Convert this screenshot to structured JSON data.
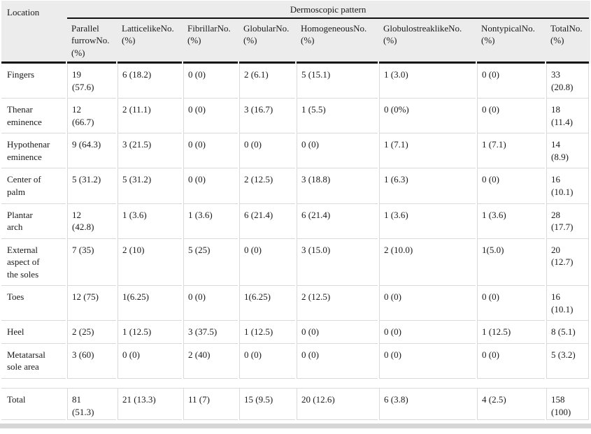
{
  "table": {
    "location_header": "Location",
    "group_header": "Dermoscopic pattern",
    "columns": [
      {
        "id": "parallel-furrow",
        "label": "Parallel\nfurrowNo.\n(%)"
      },
      {
        "id": "latticelike",
        "label": "LatticelikeNo.\n(%)"
      },
      {
        "id": "fibrillar",
        "label": "FibrillarNo.\n(%)"
      },
      {
        "id": "globular",
        "label": "GlobularNo.\n(%)"
      },
      {
        "id": "homogeneous",
        "label": "HomogeneousNo.\n(%)"
      },
      {
        "id": "globulostreaklike",
        "label": "GlobulostreaklikeNo.\n(%)"
      },
      {
        "id": "nontypical",
        "label": "NontypicalNo.\n(%)"
      },
      {
        "id": "total",
        "label": "TotalNo.\n(%)"
      }
    ],
    "rows": [
      {
        "location": "Fingers",
        "values": [
          "19\n(57.6)",
          "6 (18.2)",
          "0 (0)",
          "2 (6.1)",
          "5 (15.1)",
          "1 (3.0)",
          "0 (0)",
          "33\n(20.8)"
        ]
      },
      {
        "location": "Thenar\neminence",
        "values": [
          "12\n(66.7)",
          "2 (11.1)",
          "0 (0)",
          "3 (16.7)",
          "1 (5.5)",
          "0 (0%)",
          "0 (0)",
          "18\n(11.4)"
        ]
      },
      {
        "location": "Hypothenar\neminence",
        "values": [
          "9 (64.3)",
          "3 (21.5)",
          "0 (0)",
          "0 (0)",
          "0 (0)",
          "1 (7.1)",
          "1 (7.1)",
          "14\n(8.9)"
        ]
      },
      {
        "location": "Center of\npalm",
        "values": [
          "5 (31.2)",
          "5 (31.2)",
          "0 (0)",
          "2 (12.5)",
          "3 (18.8)",
          "1 (6.3)",
          "0 (0)",
          "16\n(10.1)"
        ]
      },
      {
        "location": "Plantar\narch",
        "values": [
          "12\n(42.8)",
          "1 (3.6)",
          "1 (3.6)",
          "6 (21.4)",
          "6 (21.4)",
          "1 (3.6)",
          "1 (3.6)",
          "28\n(17.7)"
        ]
      },
      {
        "location": "External\naspect of\nthe soles",
        "values": [
          "7 (35)",
          "2 (10)",
          "5 (25)",
          "0 (0)",
          "3 (15.0)",
          "2 (10.0)",
          "1(5.0)",
          "20\n(12.7)"
        ]
      },
      {
        "location": "Toes",
        "values": [
          "12 (75)",
          "1(6.25)",
          "0 (0)",
          "1(6.25)",
          "2 (12.5)",
          "0 (0)",
          "0 (0)",
          "16\n(10.1)"
        ]
      },
      {
        "location": "Heel",
        "values": [
          "2 (25)",
          "1 (12.5)",
          "3 (37.5)",
          "1 (12.5)",
          "0 (0)",
          "0 (0)",
          "1 (12.5)",
          "8 (5.1)"
        ]
      },
      {
        "location": "Metatarsal\nsole area",
        "values": [
          "3 (60)",
          "0 (0)",
          "2 (40)",
          "0 (0)",
          "0 (0)",
          "0 (0)",
          "0 (0)",
          "5 (3.2)"
        ]
      },
      {
        "location": "Total",
        "is_total": true,
        "spacer_before": true,
        "values": [
          "81\n(51.3)",
          "21 (13.3)",
          "11 (7)",
          "15 (9.5)",
          "20 (12.6)",
          "6 (3.8)",
          "4 (2.5)",
          "158\n(100)"
        ]
      }
    ]
  },
  "colors": {
    "header_bg": "#ececec",
    "rule_black": "#111111",
    "rule_gray": "#d9d9d9",
    "strip": "#d6d6d6",
    "text": "#1a1a1a"
  }
}
